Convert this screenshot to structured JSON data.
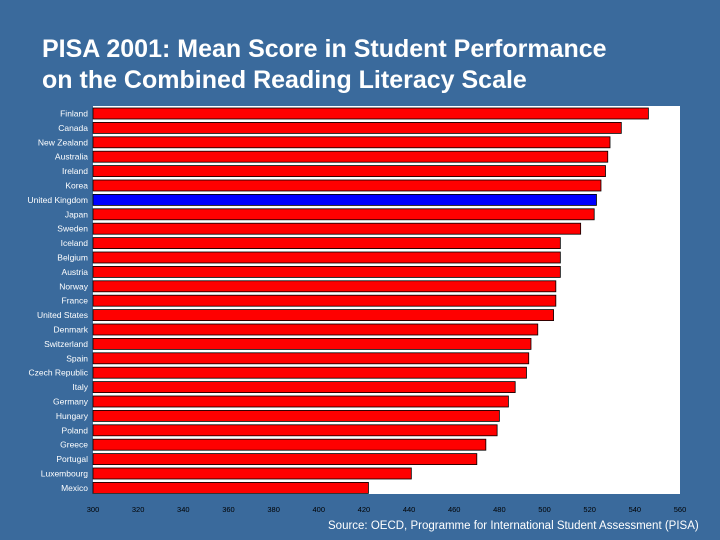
{
  "slide": {
    "title_lines": [
      "PISA 2001: Mean Score in Student Performance",
      "on the Combined Reading Literacy Scale"
    ],
    "source": "Source: OECD, Programme for International Student Assessment (PISA)"
  },
  "colors": {
    "background": "#3a6a9c",
    "plot_area": "#ffffff",
    "bar": "#ff0000",
    "highlight_bar": "#0000ff",
    "bar_outline": "#000000",
    "label_text": "#ffffff",
    "tick_text": "#000000"
  },
  "chart_data": {
    "type": "bar",
    "orientation": "horizontal",
    "title": "PISA 2001: Mean Score in Student Performance on the Combined Reading Literacy Scale",
    "xlabel": "",
    "ylabel": "",
    "xlim": [
      300,
      560
    ],
    "xticks": [
      300,
      320,
      340,
      360,
      380,
      400,
      420,
      440,
      460,
      480,
      500,
      520,
      540,
      560
    ],
    "grid": false,
    "legend": "none",
    "highlight": "United Kingdom",
    "categories": [
      "Finland",
      "Canada",
      "New Zealand",
      "Australia",
      "Ireland",
      "Korea",
      "United Kingdom",
      "Japan",
      "Sweden",
      "Iceland",
      "Belgium",
      "Austria",
      "Norway",
      "France",
      "United States",
      "Denmark",
      "Switzerland",
      "Spain",
      "Czech Republic",
      "Italy",
      "Germany",
      "Hungary",
      "Poland",
      "Greece",
      "Portugal",
      "Luxembourg",
      "Mexico"
    ],
    "values": [
      546,
      534,
      529,
      528,
      527,
      525,
      523,
      522,
      516,
      507,
      507,
      507,
      505,
      505,
      504,
      497,
      494,
      493,
      492,
      487,
      484,
      480,
      479,
      474,
      470,
      441,
      422
    ]
  }
}
